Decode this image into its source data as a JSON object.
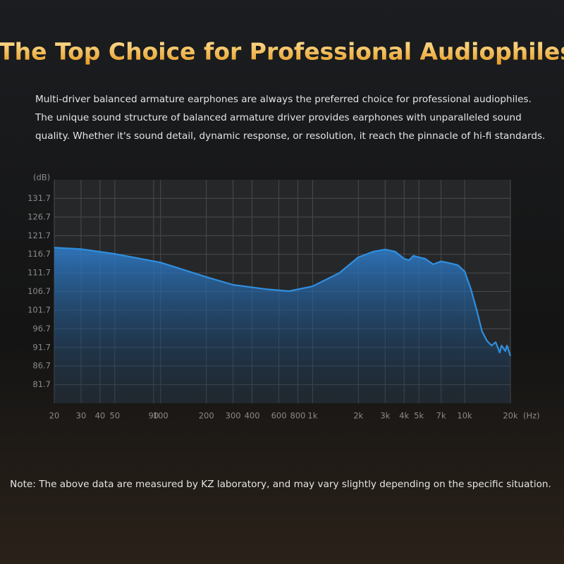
{
  "title": "The Top Choice for Professional Audiophiles",
  "description": [
    "Multi-driver balanced armature earphones are always the preferred choice for professional audiophiles.",
    "The unique sound structure of balanced armature driver provides earphones with unparalleled sound",
    "quality. Whether it's sound detail, dynamic response, or resolution, it reach the pinnacle of hi-fi standards."
  ],
  "chart_data": {
    "type": "line",
    "xscale": "log",
    "grid": true,
    "color": "#2f8fe0",
    "x_unit": "(Hz)",
    "y_unit": "(dB)",
    "x": [
      20,
      30,
      50,
      100,
      200,
      300,
      500,
      700,
      1000,
      1500,
      2000,
      2500,
      3000,
      3500,
      4000,
      4300,
      4600,
      5000,
      5500,
      6200,
      7000,
      8000,
      9000,
      10000,
      11000,
      12000,
      13000,
      14000,
      15000,
      16000,
      17000,
      17500,
      18500,
      19000,
      20000
    ],
    "values": [
      118.5,
      118.1,
      116.8,
      114.5,
      110.6,
      108.5,
      107.3,
      106.8,
      108.1,
      111.7,
      115.9,
      117.4,
      118.0,
      117.4,
      115.5,
      115.1,
      116.3,
      115.9,
      115.5,
      114.0,
      114.8,
      114.3,
      113.8,
      112.1,
      107.3,
      101.7,
      96.0,
      93.5,
      92.2,
      93.1,
      90.3,
      92.2,
      90.7,
      92.2,
      89.4
    ],
    "xlim": [
      20,
      20000
    ],
    "xticks": [
      20,
      30,
      40,
      50,
      90,
      100,
      200,
      300,
      400,
      600,
      800,
      {
        "value": 1000,
        "label": "1k"
      },
      {
        "value": 2000,
        "label": "2k"
      },
      {
        "value": 3000,
        "label": "3k"
      },
      {
        "value": 4000,
        "label": "4k"
      },
      {
        "value": 5000,
        "label": "5k"
      },
      {
        "value": 7000,
        "label": "7k"
      },
      {
        "value": 10000,
        "label": "10k"
      },
      {
        "value": 20000,
        "label": "20k"
      }
    ],
    "ylim": [
      76.7,
      136.7
    ],
    "yticks": [
      81.7,
      86.7,
      91.7,
      96.7,
      101.7,
      106.7,
      111.7,
      116.7,
      121.7,
      126.7,
      131.7
    ]
  },
  "note": "Note: The above data are measured by KZ laboratory, and may vary slightly depending on the specific situation."
}
